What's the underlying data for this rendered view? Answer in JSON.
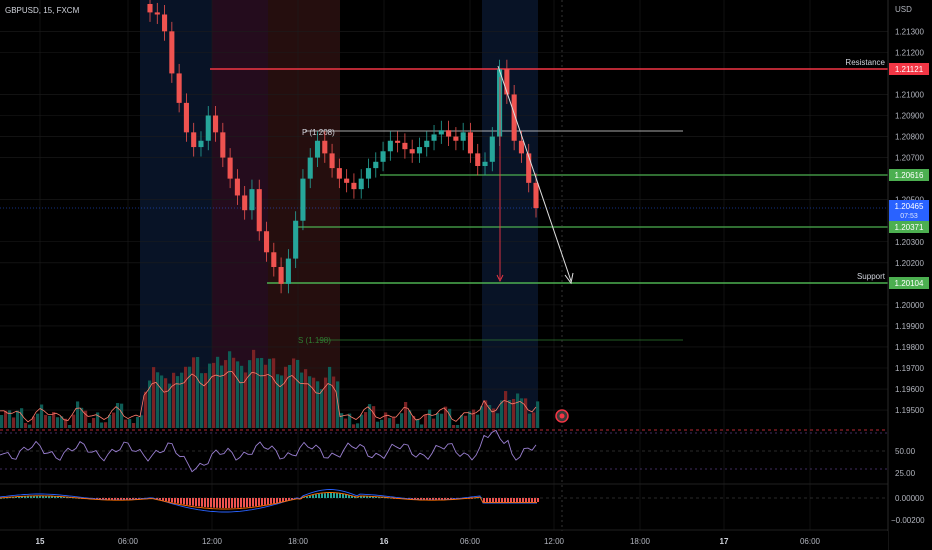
{
  "header": {
    "symbol": "GBPUSD, 15, FXCM"
  },
  "price_axis": {
    "label": "USD",
    "ticks": [
      "1.21300",
      "1.21200",
      "1.21000",
      "1.20900",
      "1.20800",
      "1.20700",
      "1.20500",
      "1.20300",
      "1.20200",
      "1.20000",
      "1.19900",
      "1.19800",
      "1.19700",
      "1.19600",
      "1.19500"
    ],
    "current_price": "1.20465",
    "countdown": "07:53"
  },
  "levels": {
    "resistance": {
      "label": "Resistance",
      "value": "1.21121",
      "color": "#f23645"
    },
    "upper_green": {
      "value": "1.20616",
      "color": "#4caf50"
    },
    "lower_green": {
      "value": "1.20371",
      "color": "#4caf50"
    },
    "support": {
      "label": "Support",
      "value": "1.20104",
      "color": "#4caf50"
    },
    "pivot_label": "P (1.208)",
    "s1_label": "S (1.198)"
  },
  "rsi_axis": {
    "ticks": [
      "50.00",
      "25.00"
    ]
  },
  "macd_axis": {
    "ticks": [
      "0.00000",
      "−0.00200"
    ]
  },
  "time_axis": {
    "ticks": [
      "15",
      "06:00",
      "12:00",
      "18:00",
      "16",
      "06:00",
      "12:00",
      "18:00",
      "17",
      "06:00"
    ]
  },
  "colors": {
    "up": "#26a69a",
    "down": "#ef5350",
    "background": "#000000",
    "grid": "#1c1c1c"
  },
  "chart_data": {
    "type": "line",
    "title": "GBPUSD, 15, FXCM",
    "ylabel": "USD",
    "ylim": [
      1.1945,
      1.2138
    ],
    "x_label_ticks": [
      "15",
      "06:00",
      "12:00",
      "18:00",
      "16",
      "06:00",
      "12:00",
      "18:00",
      "17",
      "06:00"
    ],
    "series": [
      {
        "values": [
          1.2139,
          1.2138,
          1.213,
          1.211,
          1.2096,
          1.2082,
          1.2075,
          1.2078,
          1.209,
          1.2082,
          1.207,
          1.206,
          1.2052,
          1.2045,
          1.2055,
          1.2035,
          1.2025,
          1.2018,
          1.201,
          1.2022,
          1.204,
          1.206,
          1.207,
          1.2078,
          1.2072,
          1.2065,
          1.206,
          1.2058,
          1.2055,
          1.206,
          1.2065,
          1.2068,
          1.2073,
          1.2078,
          1.2077,
          1.2074,
          1.2072,
          1.2075,
          1.2078,
          1.2081,
          1.2083,
          1.208,
          1.2078,
          1.2082,
          1.2072,
          1.2066,
          1.2068,
          1.208,
          1.2112,
          1.21,
          1.2078,
          1.2072,
          1.2058,
          1.2046
        ]
      }
    ]
  }
}
